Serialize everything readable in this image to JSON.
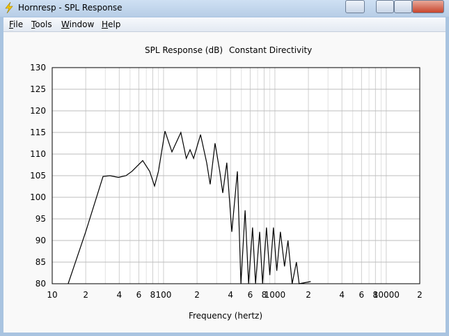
{
  "window": {
    "title": "Hornresp - SPL Response"
  },
  "menu": [
    "File",
    "Tools",
    "Window",
    "Help"
  ],
  "chart_data": {
    "type": "line",
    "title": "SPL Response (dB)",
    "subtitle": "Constant Directivity",
    "x_label": "Frequency (hertz)",
    "x_scale": "log",
    "grid": true,
    "xlim": [
      10,
      20000
    ],
    "ylim": [
      80,
      130
    ],
    "yticks": [
      80,
      85,
      90,
      95,
      100,
      105,
      110,
      115,
      120,
      125,
      130
    ],
    "xticks": [
      10,
      {
        "value": 20,
        "label": "2"
      },
      {
        "value": 40,
        "label": "4"
      },
      {
        "value": 60,
        "label": "6"
      },
      {
        "value": 80,
        "label": "8"
      },
      100,
      {
        "value": 200,
        "label": "2"
      },
      {
        "value": 400,
        "label": "4"
      },
      {
        "value": 600,
        "label": "6"
      },
      {
        "value": 800,
        "label": "8"
      },
      1000,
      {
        "value": 2000,
        "label": "2"
      },
      {
        "value": 4000,
        "label": "4"
      },
      {
        "value": 6000,
        "label": "6"
      },
      {
        "value": 8000,
        "label": "8"
      },
      10000,
      {
        "value": 20000,
        "label": "2"
      }
    ],
    "x_minor_ticks": [
      30,
      50,
      70,
      90,
      300,
      500,
      700,
      900,
      3000,
      5000,
      7000,
      9000
    ],
    "x": [
      13.9,
      20,
      28.6,
      33,
      39.3,
      46,
      52,
      65,
      75,
      83,
      90,
      103,
      119,
      143,
      160,
      173,
      186,
      215,
      244,
      262,
      290,
      320,
      340,
      370,
      410,
      460,
      495,
      540,
      580,
      630,
      670,
      730,
      775,
      840,
      900,
      970,
      1040,
      1120,
      1220,
      1310,
      1430,
      1560,
      1650,
      2100
    ],
    "series": [
      {
        "color": "#000000",
        "values": [
          80,
          92,
          104.8,
          105,
          104.6,
          105,
          106,
          108.5,
          106,
          102.6,
          106,
          115.3,
          110.5,
          115,
          109,
          111,
          109,
          114.5,
          108,
          103,
          112.5,
          106,
          101,
          108,
          92,
          106,
          80,
          97,
          80,
          93,
          80,
          92,
          80,
          93,
          82,
          93,
          83,
          92,
          84,
          90,
          80,
          85,
          80,
          80.5
        ]
      }
    ]
  }
}
